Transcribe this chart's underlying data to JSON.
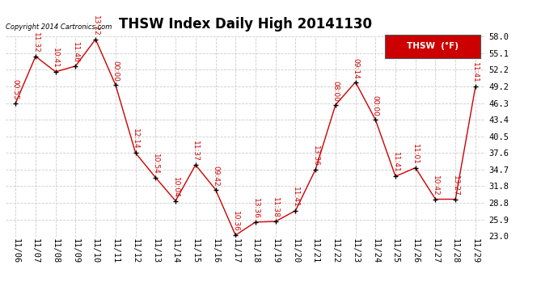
{
  "title": "THSW Index Daily High 20141130",
  "copyright": "Copyright 2014 Cartronics.com",
  "legend_label": "THSW  (°F)",
  "x_labels": [
    "11/06",
    "11/07",
    "11/08",
    "11/09",
    "11/10",
    "11/11",
    "11/12",
    "11/13",
    "11/14",
    "11/15",
    "11/16",
    "11/17",
    "11/18",
    "11/19",
    "11/20",
    "11/21",
    "11/22",
    "11/23",
    "11/24",
    "11/25",
    "11/26",
    "11/27",
    "11/28",
    "11/29"
  ],
  "y_values": [
    46.3,
    54.5,
    51.8,
    52.8,
    57.5,
    49.5,
    37.6,
    33.3,
    29.2,
    35.5,
    31.2,
    23.2,
    25.5,
    25.6,
    27.5,
    34.7,
    46.0,
    50.0,
    43.4,
    33.5,
    35.0,
    29.5,
    29.5,
    49.2
  ],
  "annotations": [
    "00:55",
    "11:32",
    "10:41",
    "11:46",
    "13:22",
    "00:00",
    "12:14",
    "10:54",
    "10:04",
    "11:37",
    "09:42",
    "10:36",
    "13:36",
    "11:38",
    "11:41",
    "13:36",
    "08:00",
    "09:14",
    "00:00",
    "11:41",
    "11:01",
    "10:42",
    "13:27",
    "11:41"
  ],
  "ylim_min": 23.0,
  "ylim_max": 58.0,
  "yticks": [
    23.0,
    25.9,
    28.8,
    31.8,
    34.7,
    37.6,
    40.5,
    43.4,
    46.3,
    49.2,
    52.2,
    55.1,
    58.0
  ],
  "line_color": "#cc0000",
  "marker_color": "#000000",
  "bg_color": "#ffffff",
  "grid_color": "#cccccc",
  "legend_bg": "#cc0000",
  "legend_fg": "#ffffff",
  "title_fontsize": 12,
  "annotation_fontsize": 6.5,
  "tick_fontsize": 7.5,
  "copyright_fontsize": 6
}
